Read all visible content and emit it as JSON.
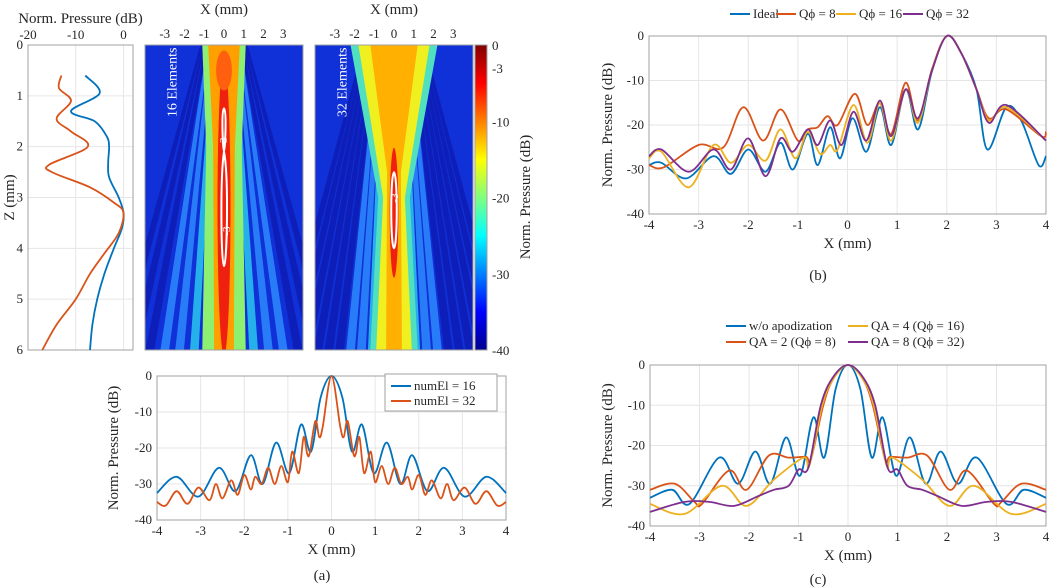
{
  "colors": {
    "blue": "#0072BD",
    "orange": "#D95319",
    "yellow": "#EDB120",
    "purple": "#7E2F8E"
  },
  "chart_data": [
    {
      "id": "axial",
      "type": "line",
      "title": "",
      "xlabel": "Norm. Pressure (dB)",
      "ylabel": "Z (mm)",
      "xlim": [
        -20,
        2
      ],
      "ylim": [
        0,
        6
      ],
      "y_reversed": true,
      "xticks": [
        -20,
        -10,
        0
      ],
      "yticks": [
        0,
        1,
        2,
        3,
        4,
        5,
        6
      ],
      "grid": true,
      "series": [
        {
          "name": "16 Elements",
          "color": "blue",
          "points": [
            [
              -8,
              0.6
            ],
            [
              -5,
              0.95
            ],
            [
              -11,
              1.3
            ],
            [
              -6,
              1.5
            ],
            [
              -3.5,
              1.8
            ],
            [
              -3,
              2.0
            ],
            [
              -3.2,
              2.3
            ],
            [
              -3,
              2.6
            ],
            [
              -1,
              3.0
            ],
            [
              0,
              3.3
            ],
            [
              -0.3,
              3.6
            ],
            [
              -2,
              4.0
            ],
            [
              -4,
              4.5
            ],
            [
              -5.5,
              5.0
            ],
            [
              -6.5,
              5.5
            ],
            [
              -7,
              6.0
            ]
          ]
        },
        {
          "name": "32 Elements",
          "color": "orange",
          "points": [
            [
              -13,
              0.6
            ],
            [
              -13.5,
              0.85
            ],
            [
              -11,
              1.1
            ],
            [
              -14,
              1.45
            ],
            [
              -11,
              1.7
            ],
            [
              -7.5,
              2.0
            ],
            [
              -15.5,
              2.35
            ],
            [
              -15,
              2.5
            ],
            [
              -7,
              2.8
            ],
            [
              -2,
              3.1
            ],
            [
              0,
              3.3
            ],
            [
              -1,
              3.7
            ],
            [
              -4,
              4.1
            ],
            [
              -7,
              4.5
            ],
            [
              -10,
              5.0
            ],
            [
              -14,
              5.5
            ],
            [
              -17,
              6.0
            ]
          ]
        }
      ]
    },
    {
      "id": "heatmap16",
      "type": "heatmap",
      "xlabel": "X (mm)",
      "xticks": [
        -3,
        -2,
        -1,
        0,
        1,
        2,
        3
      ],
      "xlim": [
        -4,
        4
      ],
      "ylim": [
        0,
        6
      ],
      "annotation": "16 Elements",
      "contour_label": "-3",
      "contour_level": -3
    },
    {
      "id": "heatmap32",
      "type": "heatmap",
      "xlabel": "X (mm)",
      "xticks": [
        -3,
        -2,
        -1,
        0,
        1,
        2,
        3
      ],
      "xlim": [
        -4,
        4
      ],
      "ylim": [
        0,
        6
      ],
      "annotation": "32 Elements",
      "contour_label": "-3",
      "contour_level": -3
    },
    {
      "id": "colorbar",
      "type": "heatmap",
      "label": "Norm. Pressure (dB)",
      "clim": [
        -40,
        0
      ],
      "ticks": [
        0,
        -3,
        -10,
        -20,
        -30,
        -40
      ]
    },
    {
      "id": "a",
      "type": "line",
      "xlabel": "X (mm)",
      "ylabel": "Norm. Pressure (dB)",
      "xlim": [
        -4,
        4
      ],
      "ylim": [
        -40,
        0
      ],
      "xticks": [
        -4,
        -3,
        -2,
        -1,
        0,
        1,
        2,
        3,
        4
      ],
      "yticks": [
        0,
        -10,
        -20,
        -30,
        -40
      ],
      "grid": true,
      "legend": "top-right",
      "caption": "(a)",
      "symmetric": true,
      "series": [
        {
          "name": "numEl = 16",
          "color": "blue",
          "points": [
            [
              0,
              0
            ],
            [
              0.25,
              -6
            ],
            [
              0.47,
              -21
            ],
            [
              0.7,
              -13.5
            ],
            [
              0.97,
              -27
            ],
            [
              1.27,
              -18.5
            ],
            [
              1.58,
              -30
            ],
            [
              1.85,
              -22
            ],
            [
              2.2,
              -32
            ],
            [
              2.58,
              -25.5
            ],
            [
              3.05,
              -33.5
            ],
            [
              3.55,
              -28
            ],
            [
              4,
              -32.5
            ]
          ]
        },
        {
          "name": "numEl = 32",
          "color": "orange",
          "points": [
            [
              0,
              0
            ],
            [
              0.2,
              -14
            ],
            [
              0.28,
              -17
            ],
            [
              0.37,
              -12.5
            ],
            [
              0.5,
              -21.5
            ],
            [
              0.56,
              -21.5
            ],
            [
              0.64,
              -17
            ],
            [
              0.75,
              -27
            ],
            [
              0.9,
              -21
            ],
            [
              1.0,
              -29.5
            ],
            [
              1.15,
              -25
            ],
            [
              1.3,
              -30
            ],
            [
              1.45,
              -25.5
            ],
            [
              1.6,
              -30
            ],
            [
              1.75,
              -28
            ],
            [
              1.85,
              -31.5
            ],
            [
              2.0,
              -27.5
            ],
            [
              2.15,
              -33
            ],
            [
              2.3,
              -29
            ],
            [
              2.5,
              -34
            ],
            [
              2.65,
              -30
            ],
            [
              2.8,
              -34.5
            ],
            [
              3.05,
              -31
            ],
            [
              3.3,
              -35.5
            ],
            [
              3.55,
              -32
            ],
            [
              3.8,
              -36
            ],
            [
              4,
              -35
            ]
          ]
        }
      ]
    },
    {
      "id": "b",
      "type": "line",
      "xlabel": "X (mm)",
      "ylabel": "Norm. Pressure (dB)",
      "xlim": [
        -4,
        4
      ],
      "ylim": [
        -40,
        0
      ],
      "xticks": [
        -4,
        -3,
        -2,
        -1,
        0,
        1,
        2,
        3,
        4
      ],
      "yticks": [
        0,
        -10,
        -20,
        -30,
        -40
      ],
      "grid": true,
      "legend": "top",
      "caption": "(b)",
      "series": [
        {
          "name": "Ideal",
          "color": "blue",
          "points": [
            [
              -4,
              -29
            ],
            [
              -3.75,
              -28.5
            ],
            [
              -3.25,
              -32
            ],
            [
              -2.7,
              -27
            ],
            [
              -2.35,
              -31
            ],
            [
              -2,
              -25.5
            ],
            [
              -1.65,
              -30.5
            ],
            [
              -1.35,
              -24
            ],
            [
              -1.1,
              -30
            ],
            [
              -0.8,
              -22
            ],
            [
              -0.6,
              -29
            ],
            [
              -0.35,
              -20.5
            ],
            [
              -0.15,
              -27.5
            ],
            [
              0.1,
              -18.5
            ],
            [
              0.38,
              -26
            ],
            [
              0.65,
              -16
            ],
            [
              0.88,
              -24.5
            ],
            [
              1.17,
              -12
            ],
            [
              1.42,
              -21
            ],
            [
              1.7,
              -8
            ],
            [
              2.0,
              0
            ],
            [
              2.3,
              -4
            ],
            [
              2.6,
              -12
            ],
            [
              2.82,
              -25.5
            ],
            [
              3.2,
              -16
            ],
            [
              3.5,
              -19
            ],
            [
              3.85,
              -29
            ],
            [
              4,
              -27
            ]
          ]
        },
        {
          "name": "Qϕ = 8",
          "color": "orange",
          "points": [
            [
              -4,
              -29
            ],
            [
              -3.7,
              -29.5
            ],
            [
              -3,
              -24.5
            ],
            [
              -2.5,
              -25
            ],
            [
              -2.1,
              -16
            ],
            [
              -1.7,
              -23.5
            ],
            [
              -1.35,
              -16.5
            ],
            [
              -1.0,
              -23.5
            ],
            [
              -0.8,
              -21
            ],
            [
              -0.6,
              -20.5
            ],
            [
              -0.4,
              -18
            ],
            [
              -0.2,
              -20
            ],
            [
              0.15,
              -13
            ],
            [
              0.4,
              -20
            ],
            [
              0.65,
              -15
            ],
            [
              0.88,
              -22
            ],
            [
              1.17,
              -10.5
            ],
            [
              1.42,
              -19
            ],
            [
              1.7,
              -7.5
            ],
            [
              2.0,
              0
            ],
            [
              2.3,
              -4
            ],
            [
              2.6,
              -12
            ],
            [
              2.85,
              -18.5
            ],
            [
              3.2,
              -16.5
            ],
            [
              3.9,
              -22.5
            ],
            [
              4,
              -21.5
            ]
          ]
        },
        {
          "name": "Qϕ = 16",
          "color": "yellow",
          "points": [
            [
              -4,
              -27.5
            ],
            [
              -3.75,
              -26
            ],
            [
              -3.2,
              -34
            ],
            [
              -2.7,
              -24.5
            ],
            [
              -2.35,
              -28.5
            ],
            [
              -2,
              -24.5
            ],
            [
              -1.65,
              -28
            ],
            [
              -1.35,
              -21
            ],
            [
              -1.05,
              -27.5
            ],
            [
              -0.8,
              -21.5
            ],
            [
              -0.55,
              -26.5
            ],
            [
              -0.35,
              -24.5
            ],
            [
              -0.2,
              -25.5
            ],
            [
              0.12,
              -15.5
            ],
            [
              0.4,
              -24
            ],
            [
              0.65,
              -15
            ],
            [
              0.88,
              -23.5
            ],
            [
              1.17,
              -12
            ],
            [
              1.42,
              -19.5
            ],
            [
              1.7,
              -7.8
            ],
            [
              2.0,
              0
            ],
            [
              2.3,
              -4
            ],
            [
              2.6,
              -12
            ],
            [
              2.85,
              -19
            ],
            [
              3.2,
              -16
            ],
            [
              4,
              -23.5
            ]
          ]
        },
        {
          "name": "Qϕ = 32",
          "color": "purple",
          "points": [
            [
              -4,
              -27
            ],
            [
              -3.75,
              -25.5
            ],
            [
              -3.2,
              -30.5
            ],
            [
              -2.7,
              -25.5
            ],
            [
              -2.35,
              -30
            ],
            [
              -2,
              -23
            ],
            [
              -1.65,
              -31.5
            ],
            [
              -1.35,
              -23
            ],
            [
              -1.1,
              -26
            ],
            [
              -0.8,
              -21
            ],
            [
              -0.6,
              -24.5
            ],
            [
              -0.35,
              -19
            ],
            [
              -0.12,
              -24.5
            ],
            [
              0.12,
              -17
            ],
            [
              0.38,
              -23.5
            ],
            [
              0.65,
              -14.5
            ],
            [
              0.88,
              -22.5
            ],
            [
              1.17,
              -12
            ],
            [
              1.42,
              -18.5
            ],
            [
              1.7,
              -7.8
            ],
            [
              2.0,
              0
            ],
            [
              2.3,
              -4
            ],
            [
              2.6,
              -12
            ],
            [
              2.85,
              -19.5
            ],
            [
              3.2,
              -15.5
            ],
            [
              4,
              -23.5
            ]
          ]
        }
      ]
    },
    {
      "id": "c",
      "type": "line",
      "xlabel": "X (mm)",
      "ylabel": "Norm. Pressure (dB)",
      "xlim": [
        -4,
        4
      ],
      "ylim": [
        -40,
        0
      ],
      "xticks": [
        -4,
        -3,
        -2,
        -1,
        0,
        1,
        2,
        3,
        4
      ],
      "yticks": [
        0,
        -10,
        -20,
        -30,
        -40
      ],
      "grid": true,
      "legend": "top",
      "caption": "(c)",
      "symmetric": true,
      "series": [
        {
          "name": "w/o apodization",
          "color": "blue",
          "points": [
            [
              0,
              0
            ],
            [
              0.25,
              -6
            ],
            [
              0.48,
              -23
            ],
            [
              0.7,
              -13
            ],
            [
              0.97,
              -27.5
            ],
            [
              1.25,
              -18
            ],
            [
              1.57,
              -29.5
            ],
            [
              1.87,
              -21.5
            ],
            [
              2.22,
              -29.5
            ],
            [
              2.6,
              -23
            ],
            [
              3.2,
              -34.5
            ],
            [
              3.55,
              -31
            ],
            [
              4,
              -33
            ]
          ]
        },
        {
          "name": "QA = 2 (Qϕ = 8)",
          "color": "orange",
          "points": [
            [
              0,
              0
            ],
            [
              0.3,
              -3.5
            ],
            [
              0.5,
              -10
            ],
            [
              0.75,
              -23.5
            ],
            [
              0.85,
              -22.8
            ],
            [
              1.2,
              -23
            ],
            [
              1.6,
              -22.5
            ],
            [
              2.05,
              -31
            ],
            [
              2.4,
              -26.2
            ],
            [
              2.95,
              -34.5
            ],
            [
              3.1,
              -34
            ],
            [
              3.5,
              -29.5
            ],
            [
              4,
              -31
            ]
          ]
        },
        {
          "name": "QA = 4 (Qϕ = 16)",
          "color": "yellow",
          "points": [
            [
              0,
              0
            ],
            [
              0.3,
              -3.5
            ],
            [
              0.52,
              -10
            ],
            [
              0.78,
              -25
            ],
            [
              0.9,
              -23
            ],
            [
              1.5,
              -28.5
            ],
            [
              2.05,
              -35
            ],
            [
              2.55,
              -30
            ],
            [
              3.3,
              -37
            ],
            [
              4,
              -34.5
            ]
          ]
        },
        {
          "name": "QA = 8 (Qϕ = 32)",
          "color": "purple",
          "points": [
            [
              0,
              0
            ],
            [
              0.3,
              -3
            ],
            [
              0.55,
              -10
            ],
            [
              0.8,
              -25.5
            ],
            [
              1.0,
              -26
            ],
            [
              1.2,
              -30
            ],
            [
              1.5,
              -31
            ],
            [
              1.8,
              -32.5
            ],
            [
              2.3,
              -35
            ],
            [
              2.8,
              -34
            ],
            [
              3.3,
              -34
            ],
            [
              4,
              -36.5
            ]
          ]
        }
      ]
    }
  ]
}
